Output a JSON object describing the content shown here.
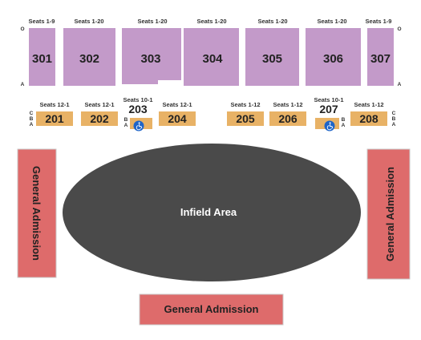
{
  "colors": {
    "upper_section": "#c39ac9",
    "lower_section": "#e8b266",
    "general_admission": "#de6b6b",
    "infield": "#4a4a4a",
    "accessible": "#1e64c8"
  },
  "upper_sections": [
    {
      "id": "301",
      "seats": "Seats 1-9",
      "row_top": "O",
      "row_bottom": "A"
    },
    {
      "id": "302",
      "seats": "Seats 1-20"
    },
    {
      "id": "303",
      "seats": "Seats 1-20"
    },
    {
      "id": "304",
      "seats": "Seats 1-20"
    },
    {
      "id": "305",
      "seats": "Seats 1-20"
    },
    {
      "id": "306",
      "seats": "Seats 1-20"
    },
    {
      "id": "307",
      "seats": "Seats 1-9",
      "row_top": "O",
      "row_bottom": "A"
    }
  ],
  "lower_sections": [
    {
      "id": "201",
      "seats": "Seats 12-1",
      "rows": [
        "C",
        "B",
        "A"
      ]
    },
    {
      "id": "202",
      "seats": "Seats 12-1"
    },
    {
      "id": "203",
      "seats": "Seats 10-1",
      "rows": [
        "B",
        "A"
      ],
      "accessible_icon": "wheelchair-icon"
    },
    {
      "id": "204",
      "seats": "Seats 12-1"
    },
    {
      "id": "205",
      "seats": "Seats 1-12"
    },
    {
      "id": "206",
      "seats": "Seats 1-12"
    },
    {
      "id": "207",
      "seats": "Seats 10-1",
      "rows": [
        "B",
        "A"
      ],
      "accessible_icon": "wheelchair-icon"
    },
    {
      "id": "208",
      "seats": "Seats 1-12",
      "rows": [
        "C",
        "B",
        "A"
      ]
    }
  ],
  "general_admission": {
    "left": "General Admission",
    "right": "General Admission",
    "bottom": "General Admission"
  },
  "infield": {
    "label": "Infield Area"
  }
}
